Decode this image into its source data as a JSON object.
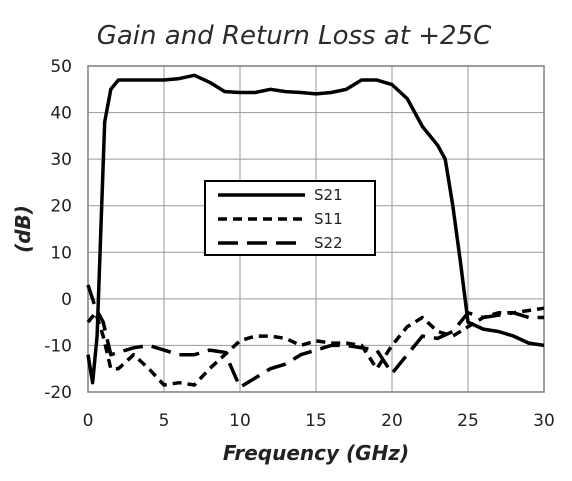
{
  "chart_data": {
    "type": "line",
    "title": "Gain and Return Loss at +25C",
    "xlabel": "Frequency (GHz)",
    "ylabel": "(dB)",
    "xlim": [
      0,
      30
    ],
    "ylim": [
      -20,
      50
    ],
    "xticks": [
      0,
      5,
      10,
      15,
      20,
      25,
      30
    ],
    "yticks": [
      -20,
      -10,
      0,
      10,
      20,
      30,
      40,
      50
    ],
    "grid": "vertical and horizontal",
    "legend": "center-left",
    "series": [
      {
        "name": "S21",
        "style": "solid",
        "points": [
          [
            0,
            -12
          ],
          [
            0.3,
            -18
          ],
          [
            0.6,
            -8
          ],
          [
            0.9,
            20
          ],
          [
            1.1,
            38
          ],
          [
            1.5,
            45
          ],
          [
            2,
            47
          ],
          [
            3,
            47
          ],
          [
            4,
            47
          ],
          [
            5,
            47
          ],
          [
            6,
            47.3
          ],
          [
            7,
            48
          ],
          [
            8,
            46.5
          ],
          [
            9,
            44.5
          ],
          [
            10,
            44.3
          ],
          [
            11,
            44.3
          ],
          [
            12,
            45
          ],
          [
            13,
            44.5
          ],
          [
            14,
            44.3
          ],
          [
            15,
            44
          ],
          [
            16,
            44.3
          ],
          [
            17,
            45
          ],
          [
            18,
            47
          ],
          [
            19,
            47
          ],
          [
            20,
            46
          ],
          [
            21,
            43
          ],
          [
            22,
            37
          ],
          [
            23,
            33
          ],
          [
            23.5,
            30
          ],
          [
            24,
            20
          ],
          [
            24.5,
            8
          ],
          [
            25,
            -5
          ],
          [
            26,
            -6.5
          ],
          [
            27,
            -7
          ],
          [
            28,
            -8
          ],
          [
            29,
            -9.5
          ],
          [
            30,
            -10
          ]
        ]
      },
      {
        "name": "S11",
        "style": "short-dash",
        "points": [
          [
            0,
            -5
          ],
          [
            0.5,
            -3
          ],
          [
            1,
            -8
          ],
          [
            1.5,
            -15
          ],
          [
            2,
            -15
          ],
          [
            3,
            -12
          ],
          [
            4,
            -15
          ],
          [
            5,
            -18.5
          ],
          [
            6,
            -18
          ],
          [
            7,
            -18.5
          ],
          [
            8,
            -15
          ],
          [
            9,
            -12
          ],
          [
            10,
            -9
          ],
          [
            11,
            -8
          ],
          [
            12,
            -8
          ],
          [
            13,
            -8.5
          ],
          [
            14,
            -10
          ],
          [
            15,
            -9
          ],
          [
            16,
            -9.5
          ],
          [
            17,
            -9.5
          ],
          [
            18,
            -10
          ],
          [
            19,
            -15
          ],
          [
            20,
            -10
          ],
          [
            21,
            -6
          ],
          [
            22,
            -4
          ],
          [
            23,
            -7
          ],
          [
            24,
            -8
          ],
          [
            25,
            -6
          ],
          [
            26,
            -4
          ],
          [
            27,
            -3
          ],
          [
            28,
            -3
          ],
          [
            29,
            -2.5
          ],
          [
            30,
            -2
          ]
        ]
      },
      {
        "name": "S22",
        "style": "long-dash",
        "points": [
          [
            0,
            3
          ],
          [
            0.5,
            -2
          ],
          [
            1,
            -5
          ],
          [
            1.5,
            -12
          ],
          [
            2,
            -11.5
          ],
          [
            3,
            -10.5
          ],
          [
            4,
            -10
          ],
          [
            5,
            -11
          ],
          [
            6,
            -12
          ],
          [
            7,
            -12
          ],
          [
            8,
            -11
          ],
          [
            9,
            -11.5
          ],
          [
            10,
            -19
          ],
          [
            11,
            -17
          ],
          [
            12,
            -15
          ],
          [
            13,
            -14
          ],
          [
            14,
            -12
          ],
          [
            15,
            -11
          ],
          [
            16,
            -10
          ],
          [
            17,
            -10
          ],
          [
            18,
            -10.5
          ],
          [
            19,
            -11
          ],
          [
            20,
            -16
          ],
          [
            21,
            -12
          ],
          [
            22,
            -8
          ],
          [
            23,
            -8.5
          ],
          [
            24,
            -7
          ],
          [
            25,
            -3
          ],
          [
            26,
            -4
          ],
          [
            27,
            -3.5
          ],
          [
            28,
            -3
          ],
          [
            29,
            -4
          ],
          [
            30,
            -4
          ]
        ]
      }
    ]
  },
  "colors": {
    "line": "#000000",
    "grid": "#999999",
    "frame": "#7f7f7f",
    "title": "#2b2b2b"
  }
}
